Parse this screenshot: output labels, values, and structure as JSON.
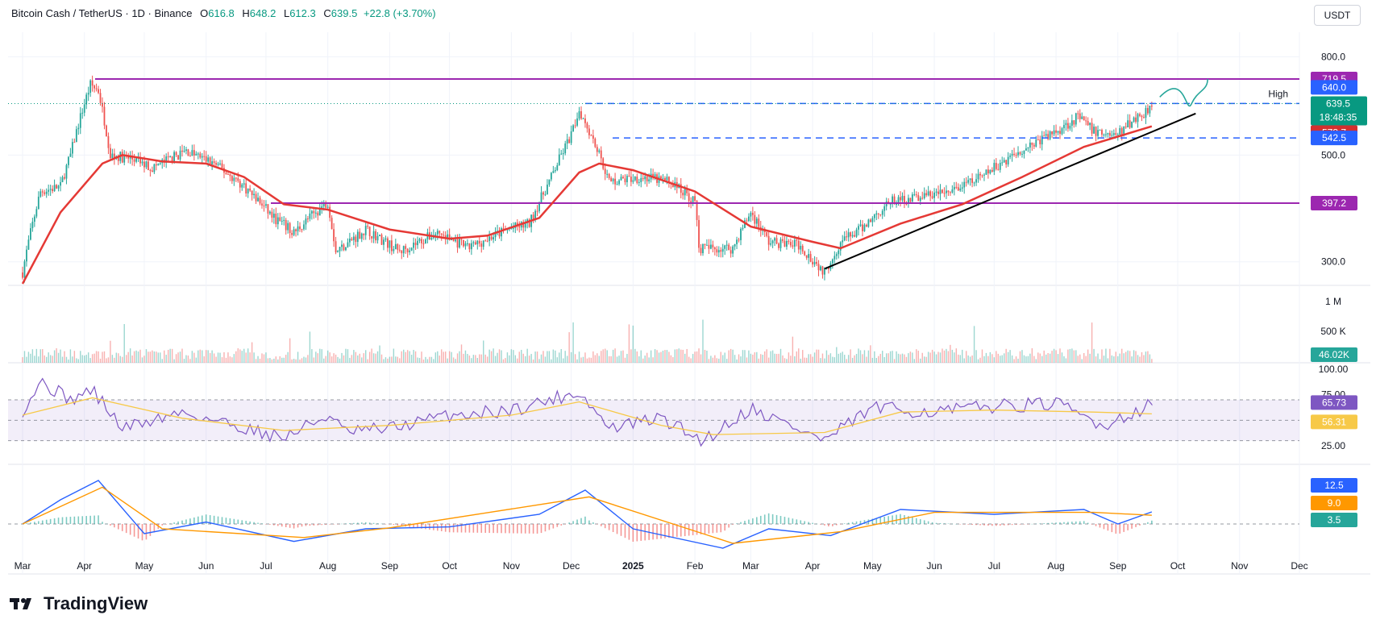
{
  "header": {
    "symbol": "Bitcoin Cash / TetherUS · 1D · Binance",
    "o_label": "O",
    "o_value": "616.8",
    "h_label": "H",
    "h_value": "648.2",
    "l_label": "L",
    "l_value": "612.3",
    "c_label": "C",
    "c_value": "639.5",
    "change": "+22.8 (+3.70%)",
    "currency": "USDT"
  },
  "brand": {
    "name": "TradingView",
    "icon": "tradingview-logo-icon"
  },
  "colors": {
    "up": "#26a69a",
    "down": "#ef5350",
    "ma": "#e53935",
    "level": "#9c27b0",
    "dashed": "#2962ff",
    "rsi": "#7e57c2",
    "rsi_ma": "#f7c948",
    "macd": "#2962ff",
    "signal": "#ff9800",
    "text": "#131722"
  },
  "chart_data": [
    {
      "type": "candlestick",
      "pane": "price",
      "title": "Bitcoin Cash / TetherUS",
      "scale": "log",
      "ylim": [
        270,
        900
      ],
      "y_ticks": [
        {
          "label": "800.0",
          "value": 800
        },
        {
          "label": "500.0",
          "value": 500
        },
        {
          "label": "300.0",
          "value": 300
        }
      ],
      "x_ticks": [
        "Mar",
        "Apr",
        "May",
        "Jun",
        "Jul",
        "Aug",
        "Sep",
        "Oct",
        "Nov",
        "Dec",
        "2025",
        "Feb",
        "Mar",
        "Apr",
        "May",
        "Jun",
        "Jul",
        "Aug",
        "Sep",
        "Oct",
        "Nov",
        "Dec"
      ],
      "close_path": [
        {
          "date": "2024-03-01",
          "close": 285
        },
        {
          "date": "2024-03-10",
          "close": 420
        },
        {
          "date": "2024-03-20",
          "close": 430
        },
        {
          "date": "2024-03-25",
          "close": 500
        },
        {
          "date": "2024-04-01",
          "close": 640
        },
        {
          "date": "2024-04-04",
          "close": 700
        },
        {
          "date": "2024-04-08",
          "close": 680
        },
        {
          "date": "2024-04-14",
          "close": 500
        },
        {
          "date": "2024-04-25",
          "close": 490
        },
        {
          "date": "2024-05-05",
          "close": 470
        },
        {
          "date": "2024-05-22",
          "close": 510
        },
        {
          "date": "2024-06-05",
          "close": 480
        },
        {
          "date": "2024-06-20",
          "close": 430
        },
        {
          "date": "2024-07-05",
          "close": 370
        },
        {
          "date": "2024-07-15",
          "close": 345
        },
        {
          "date": "2024-08-01",
          "close": 400
        },
        {
          "date": "2024-08-05",
          "close": 315
        },
        {
          "date": "2024-08-20",
          "close": 350
        },
        {
          "date": "2024-09-06",
          "close": 315
        },
        {
          "date": "2024-09-25",
          "close": 345
        },
        {
          "date": "2024-10-10",
          "close": 320
        },
        {
          "date": "2024-10-30",
          "close": 350
        },
        {
          "date": "2024-11-10",
          "close": 360
        },
        {
          "date": "2024-11-20",
          "close": 440
        },
        {
          "date": "2024-12-01",
          "close": 550
        },
        {
          "date": "2024-12-05",
          "close": 620
        },
        {
          "date": "2024-12-12",
          "close": 540
        },
        {
          "date": "2024-12-20",
          "close": 440
        },
        {
          "date": "2025-01-05",
          "close": 450
        },
        {
          "date": "2025-01-20",
          "close": 440
        },
        {
          "date": "2025-02-01",
          "close": 400
        },
        {
          "date": "2025-02-03",
          "close": 320
        },
        {
          "date": "2025-02-20",
          "close": 320
        },
        {
          "date": "2025-03-01",
          "close": 380
        },
        {
          "date": "2025-03-10",
          "close": 330
        },
        {
          "date": "2025-03-25",
          "close": 325
        },
        {
          "date": "2025-04-07",
          "close": 285
        },
        {
          "date": "2025-04-15",
          "close": 330
        },
        {
          "date": "2025-04-25",
          "close": 350
        },
        {
          "date": "2025-05-10",
          "close": 400
        },
        {
          "date": "2025-05-25",
          "close": 410
        },
        {
          "date": "2025-06-10",
          "close": 420
        },
        {
          "date": "2025-06-25",
          "close": 450
        },
        {
          "date": "2025-07-10",
          "close": 500
        },
        {
          "date": "2025-07-25",
          "close": 540
        },
        {
          "date": "2025-08-01",
          "close": 560
        },
        {
          "date": "2025-08-12",
          "close": 600
        },
        {
          "date": "2025-08-20",
          "close": 560
        },
        {
          "date": "2025-09-01",
          "close": 550
        },
        {
          "date": "2025-09-08",
          "close": 590
        },
        {
          "date": "2025-09-14",
          "close": 610
        },
        {
          "date": "2025-09-18",
          "close": 639.5
        }
      ],
      "moving_average": [
        {
          "date": "2024-03-01",
          "value": 270
        },
        {
          "date": "2024-03-20",
          "value": 380
        },
        {
          "date": "2024-04-10",
          "value": 480
        },
        {
          "date": "2024-04-20",
          "value": 500
        },
        {
          "date": "2024-05-10",
          "value": 485
        },
        {
          "date": "2024-06-01",
          "value": 480
        },
        {
          "date": "2024-06-20",
          "value": 450
        },
        {
          "date": "2024-07-10",
          "value": 395
        },
        {
          "date": "2024-08-01",
          "value": 385
        },
        {
          "date": "2024-09-01",
          "value": 350
        },
        {
          "date": "2024-10-01",
          "value": 335
        },
        {
          "date": "2024-10-20",
          "value": 340
        },
        {
          "date": "2024-11-15",
          "value": 370
        },
        {
          "date": "2024-12-05",
          "value": 460
        },
        {
          "date": "2024-12-15",
          "value": 480
        },
        {
          "date": "2025-01-01",
          "value": 465
        },
        {
          "date": "2025-02-01",
          "value": 420
        },
        {
          "date": "2025-03-01",
          "value": 355
        },
        {
          "date": "2025-04-01",
          "value": 330
        },
        {
          "date": "2025-04-15",
          "value": 320
        },
        {
          "date": "2025-05-15",
          "value": 360
        },
        {
          "date": "2025-06-15",
          "value": 395
        },
        {
          "date": "2025-07-15",
          "value": 450
        },
        {
          "date": "2025-08-15",
          "value": 520
        },
        {
          "date": "2025-09-18",
          "value": 573.7
        }
      ],
      "levels": [
        {
          "name": "resistance",
          "value": 719.5,
          "style": "solid",
          "label": "719.5"
        },
        {
          "name": "support",
          "value": 397.2,
          "style": "solid",
          "label": "397.2"
        },
        {
          "name": "high",
          "value": 640.0,
          "style": "dashed",
          "label": "640.0",
          "annotation": "High"
        },
        {
          "name": "support-dashed",
          "value": 542.5,
          "style": "dashed",
          "label": "542.5"
        }
      ],
      "trendline": [
        {
          "date": "2025-04-07",
          "value": 290
        },
        {
          "date": "2025-10-10",
          "value": 610
        }
      ],
      "projection": [
        {
          "date": "2025-09-22",
          "value": 660
        },
        {
          "date": "2025-10-05",
          "value": 690
        },
        {
          "date": "2025-10-08",
          "value": 640
        },
        {
          "date": "2025-10-16",
          "value": 719.5
        }
      ],
      "last_price": {
        "value": "639.5",
        "countdown": "18:48:35"
      },
      "ma_last": "573.7"
    },
    {
      "type": "bar",
      "pane": "volume",
      "y_ticks": [
        "1 M",
        "500 K"
      ],
      "last_value": "46.02K"
    },
    {
      "type": "line",
      "pane": "rsi",
      "y_ticks": [
        "100.00",
        "75.00",
        "25.00"
      ],
      "band": [
        30,
        70
      ],
      "mid": 50,
      "rsi": [
        {
          "date": "2024-03-01",
          "value": 60
        },
        {
          "date": "2024-03-10",
          "value": 88
        },
        {
          "date": "2024-03-25",
          "value": 70
        },
        {
          "date": "2024-04-05",
          "value": 80
        },
        {
          "date": "2024-04-20",
          "value": 42
        },
        {
          "date": "2024-05-20",
          "value": 58
        },
        {
          "date": "2024-07-10",
          "value": 33
        },
        {
          "date": "2024-08-01",
          "value": 55
        },
        {
          "date": "2024-08-10",
          "value": 38
        },
        {
          "date": "2024-09-01",
          "value": 42
        },
        {
          "date": "2024-10-01",
          "value": 55
        },
        {
          "date": "2024-11-01",
          "value": 60
        },
        {
          "date": "2024-12-05",
          "value": 78
        },
        {
          "date": "2024-12-20",
          "value": 42
        },
        {
          "date": "2025-01-15",
          "value": 52
        },
        {
          "date": "2025-02-05",
          "value": 30
        },
        {
          "date": "2025-03-01",
          "value": 62
        },
        {
          "date": "2025-04-07",
          "value": 30
        },
        {
          "date": "2025-05-01",
          "value": 62
        },
        {
          "date": "2025-06-01",
          "value": 58
        },
        {
          "date": "2025-07-01",
          "value": 64
        },
        {
          "date": "2025-08-01",
          "value": 66
        },
        {
          "date": "2025-08-25",
          "value": 45
        },
        {
          "date": "2025-09-18",
          "value": 65.73
        }
      ],
      "rsi_ma": [
        {
          "date": "2024-03-01",
          "value": 55
        },
        {
          "date": "2024-04-05",
          "value": 72
        },
        {
          "date": "2024-05-20",
          "value": 52
        },
        {
          "date": "2024-07-10",
          "value": 40
        },
        {
          "date": "2024-09-01",
          "value": 45
        },
        {
          "date": "2024-11-01",
          "value": 55
        },
        {
          "date": "2024-12-05",
          "value": 68
        },
        {
          "date": "2025-01-15",
          "value": 45
        },
        {
          "date": "2025-02-10",
          "value": 36
        },
        {
          "date": "2025-04-07",
          "value": 38
        },
        {
          "date": "2025-05-15",
          "value": 58
        },
        {
          "date": "2025-07-01",
          "value": 60
        },
        {
          "date": "2025-08-20",
          "value": 58
        },
        {
          "date": "2025-09-18",
          "value": 56.31
        }
      ],
      "last_rsi": "65.73",
      "last_ma": "56.31"
    },
    {
      "type": "line",
      "pane": "macd",
      "macd": [
        {
          "date": "2024-03-01",
          "value": 0
        },
        {
          "date": "2024-03-20",
          "value": 25
        },
        {
          "date": "2024-04-08",
          "value": 45
        },
        {
          "date": "2024-05-01",
          "value": -10
        },
        {
          "date": "2024-06-01",
          "value": 2
        },
        {
          "date": "2024-07-15",
          "value": -18
        },
        {
          "date": "2024-08-20",
          "value": -5
        },
        {
          "date": "2024-10-01",
          "value": -3
        },
        {
          "date": "2024-11-15",
          "value": 10
        },
        {
          "date": "2024-12-08",
          "value": 35
        },
        {
          "date": "2025-01-01",
          "value": -5
        },
        {
          "date": "2025-02-15",
          "value": -25
        },
        {
          "date": "2025-03-10",
          "value": -5
        },
        {
          "date": "2025-04-10",
          "value": -12
        },
        {
          "date": "2025-05-15",
          "value": 15
        },
        {
          "date": "2025-07-01",
          "value": 10
        },
        {
          "date": "2025-08-15",
          "value": 15
        },
        {
          "date": "2025-09-01",
          "value": 0
        },
        {
          "date": "2025-09-18",
          "value": 12.5
        }
      ],
      "signal": [
        {
          "date": "2024-03-01",
          "value": 0
        },
        {
          "date": "2024-04-10",
          "value": 38
        },
        {
          "date": "2024-05-10",
          "value": -5
        },
        {
          "date": "2024-07-20",
          "value": -14
        },
        {
          "date": "2024-09-01",
          "value": -4
        },
        {
          "date": "2024-12-10",
          "value": 28
        },
        {
          "date": "2025-02-20",
          "value": -20
        },
        {
          "date": "2025-04-15",
          "value": -8
        },
        {
          "date": "2025-06-01",
          "value": 12
        },
        {
          "date": "2025-08-20",
          "value": 12
        },
        {
          "date": "2025-09-18",
          "value": 9.0
        }
      ],
      "last_macd": "12.5",
      "last_signal": "9.0",
      "last_hist": "3.5"
    }
  ]
}
